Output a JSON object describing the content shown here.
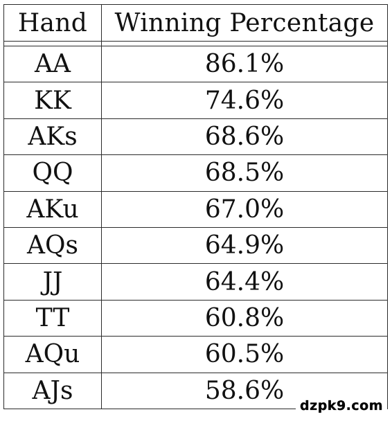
{
  "table": {
    "headers": [
      "Hand",
      "Winning Percentage"
    ],
    "rows": [
      {
        "hand": "AA",
        "pct": "86.1%"
      },
      {
        "hand": "KK",
        "pct": "74.6%"
      },
      {
        "hand": "AKs",
        "pct": "68.6%"
      },
      {
        "hand": "QQ",
        "pct": "68.5%"
      },
      {
        "hand": "AKu",
        "pct": "67.0%"
      },
      {
        "hand": "AQs",
        "pct": "64.9%"
      },
      {
        "hand": "JJ",
        "pct": "64.4%"
      },
      {
        "hand": "TT",
        "pct": "60.8%"
      },
      {
        "hand": "AQu",
        "pct": "60.5%"
      },
      {
        "hand": "AJs",
        "pct": "58.6%"
      }
    ]
  },
  "watermark": {
    "text": "dzpk9.com"
  }
}
